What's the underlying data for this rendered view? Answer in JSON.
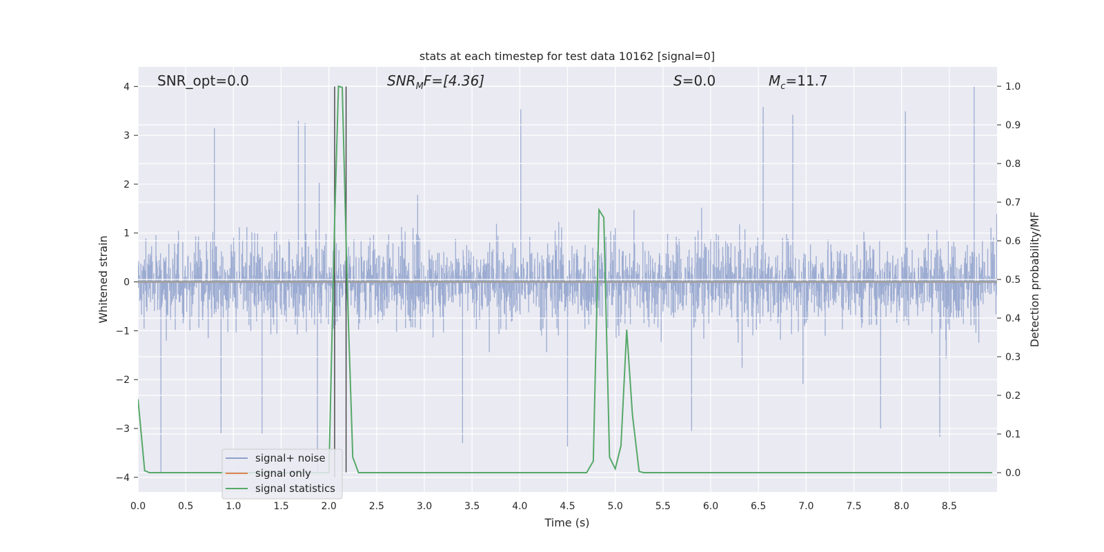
{
  "chart_data": {
    "type": "line",
    "title": "stats at each timestep for test data 10162 [signal=0]",
    "xlabel": "Time (s)",
    "ylabel": "Whitened strain",
    "y2label": "Detection probability/MF",
    "xlim": [
      0.0,
      9.0
    ],
    "ylim": [
      -4.3,
      4.4
    ],
    "y2lim": [
      -0.05,
      1.05
    ],
    "xticks": [
      "0.0",
      "0.5",
      "1.0",
      "1.5",
      "2.0",
      "2.5",
      "3.0",
      "3.5",
      "4.0",
      "4.5",
      "5.0",
      "5.5",
      "6.0",
      "6.5",
      "7.0",
      "7.5",
      "8.0",
      "8.5"
    ],
    "yticks": [
      "4",
      "3",
      "2",
      "1",
      "0",
      "−1",
      "−2",
      "−3",
      "−4"
    ],
    "y2ticks": [
      "1.0",
      "0.9",
      "0.8",
      "0.7",
      "0.6",
      "0.5",
      "0.4",
      "0.3",
      "0.2",
      "0.1",
      "0.0"
    ],
    "grid": true,
    "legend_position": "lower-left",
    "annotations": {
      "snr_opt": "SNR_opt=0.0",
      "snr_mf_base": "SNR",
      "snr_mf_sub": "M",
      "snr_mf_rest": "F=[4.36]",
      "s_var": "S",
      "s_rest": "=0.0",
      "mc_base": "M",
      "mc_sub": "c",
      "mc_rest": "=11.7"
    },
    "vertical_lines": [
      {
        "x": 2.06,
        "y_range": [
          -4.0,
          4.0
        ]
      },
      {
        "x": 2.18,
        "y_range": [
          -3.9,
          4.0
        ]
      }
    ],
    "series": [
      {
        "name": "signal+ noise",
        "color": "#8da0cb",
        "axis": "left",
        "description_style": "dense noise, amplitude mostly within ±1.6 with spikes to ±3.6",
        "spikes": [
          {
            "x": 0.8,
            "y": 3.15
          },
          {
            "x": 1.68,
            "y": 3.3
          },
          {
            "x": 1.75,
            "y": 3.25
          },
          {
            "x": 4.01,
            "y": 3.53
          },
          {
            "x": 6.55,
            "y": 3.58
          },
          {
            "x": 6.86,
            "y": 3.42
          },
          {
            "x": 8.04,
            "y": 3.49
          },
          {
            "x": 8.76,
            "y": 4.0
          },
          {
            "x": 0.24,
            "y": -3.9
          },
          {
            "x": 1.88,
            "y": -3.95
          },
          {
            "x": 4.5,
            "y": -3.37
          },
          {
            "x": 3.4,
            "y": -3.3
          },
          {
            "x": 5.8,
            "y": -3.05
          },
          {
            "x": 7.78,
            "y": -3.0
          },
          {
            "x": 0.87,
            "y": -3.1
          },
          {
            "x": 1.3,
            "y": -3.12
          },
          {
            "x": 8.4,
            "y": -3.17
          }
        ]
      },
      {
        "name": "signal only",
        "color": "#dd8452",
        "axis": "left",
        "x": [
          0.0,
          9.0
        ],
        "y": [
          0.0,
          0.0
        ]
      },
      {
        "name": "signal statistics",
        "color": "#55a868",
        "axis": "right",
        "x": [
          0.0,
          0.07,
          0.12,
          0.18,
          1.95,
          2.0,
          2.06,
          2.1,
          2.14,
          2.19,
          2.25,
          2.31,
          4.7,
          4.77,
          4.83,
          4.88,
          4.94,
          5.0,
          5.06,
          5.12,
          5.18,
          5.25,
          5.3,
          8.95
        ],
        "y": [
          0.19,
          0.005,
          0.0,
          0.0,
          0.0,
          0.0,
          0.65,
          1.0,
          0.997,
          0.5,
          0.04,
          0.0,
          0.0,
          0.03,
          0.68,
          0.66,
          0.04,
          0.01,
          0.07,
          0.37,
          0.15,
          0.003,
          0.0,
          0.0
        ]
      }
    ]
  },
  "legend": {
    "items": [
      "signal+ noise",
      "signal only",
      "signal statistics"
    ]
  }
}
